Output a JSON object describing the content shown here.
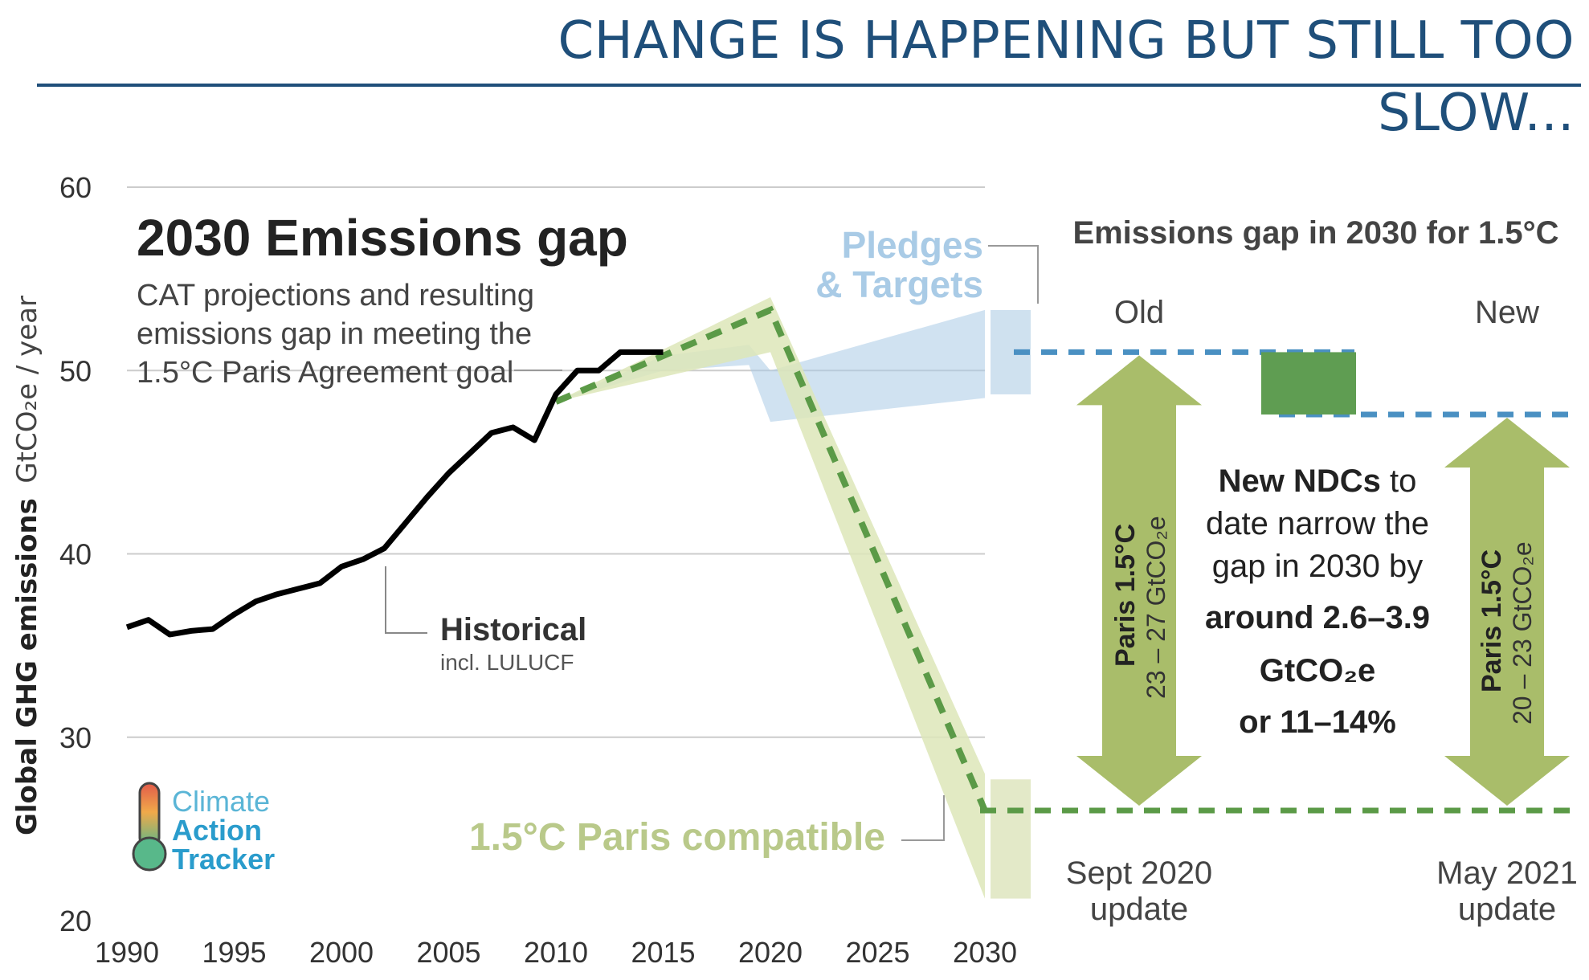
{
  "slide_title": "CHANGE IS HAPPENING BUT STILL TOO SLOW...",
  "chart_data": {
    "type": "line",
    "title": "2030 Emissions gap",
    "subtitle_lines": [
      "CAT projections and resulting",
      "emissions gap in meeting the",
      "1.5°C Paris Agreement goal"
    ],
    "ylabel": "Global GHG emissions",
    "ylabel_unit": "GtCO₂e / year",
    "xlim": [
      1990,
      2030
    ],
    "ylim": [
      20,
      60
    ],
    "x_ticks": [
      "1990",
      "1995",
      "2000",
      "2005",
      "2010",
      "2015",
      "2020",
      "2025",
      "2030"
    ],
    "y_ticks": [
      "20",
      "30",
      "40",
      "50",
      "60"
    ],
    "grid": true,
    "series": [
      {
        "name": "Historical",
        "sub_label": "incl. LULUCF",
        "color": "#000000",
        "x": [
          1990,
          1991,
          1992,
          1993,
          1994,
          1995,
          1996,
          1997,
          1998,
          1999,
          2000,
          2001,
          2002,
          2003,
          2004,
          2005,
          2006,
          2007,
          2008,
          2009,
          2010,
          2011,
          2012,
          2013,
          2014,
          2015
        ],
        "y": [
          36.0,
          36.4,
          35.6,
          35.8,
          35.9,
          36.7,
          37.4,
          37.8,
          38.1,
          38.4,
          39.3,
          39.7,
          40.3,
          41.7,
          43.1,
          44.4,
          45.5,
          46.6,
          46.9,
          46.2,
          48.7,
          50.0,
          50.0,
          51.0,
          51.0,
          51.0
        ]
      },
      {
        "name": "1.5°C Paris compatible",
        "color": "#5b9a47",
        "style": "dashed",
        "x": [
          2010,
          2020,
          2030
        ],
        "y": [
          48.3,
          53.3,
          26.0
        ],
        "band_upper": [
          48.3,
          54.0,
          28.0
        ],
        "band_lower": [
          48.3,
          51.0,
          21.2
        ],
        "band_color": "#dde6b8"
      },
      {
        "name": "Pledges & Targets",
        "color": "#a9cbe6",
        "band_x": [
          2010,
          2015,
          2019,
          2020,
          2030
        ],
        "band_upper": [
          48.3,
          50.8,
          51.4,
          50.0,
          53.3
        ],
        "band_lower": [
          48.3,
          50.0,
          50.3,
          47.2,
          48.5
        ]
      }
    ],
    "range_bars": [
      {
        "name": "pledges-2030-range",
        "color": "#cfe1ef",
        "x": 2031.2,
        "y_low": 48.7,
        "y_high": 53.3
      },
      {
        "name": "paris-2030-range",
        "color": "#e3e9c8",
        "x": 2031.2,
        "y_low": 21.2,
        "y_high": 27.7
      }
    ],
    "annotations": {
      "pledges_label": [
        "Pledges",
        "& Targets"
      ],
      "paris_label": "1.5°C Paris compatible",
      "historical_label": "Historical",
      "historical_sub": "incl. LULUCF"
    }
  },
  "gap_panel": {
    "title": "Emissions gap in 2030 for 1.5°C",
    "col_old": "Old",
    "col_new": "New",
    "old_pledge_level": 51.0,
    "new_pledge_level": 47.6,
    "paris_level": 26.0,
    "old_arrow": {
      "line1": "Paris 1.5°C",
      "line2": "23 – 27 GtCO₂e"
    },
    "new_arrow": {
      "line1": "Paris 1.5°C",
      "line2": "20 – 23 GtCO₂e"
    },
    "arrow_color": "#a9bd6a",
    "gap_box_color": "#5f9d52",
    "dot_blue": "#4a90c2",
    "dot_green": "#5b9a47",
    "mid_text": {
      "l1_bold": "New NDCs",
      "l1_rest": " to",
      "l2": "date narrow the",
      "l3": "gap in 2030 by",
      "l4": "around 2.6–3.9",
      "l5": "GtCO₂e",
      "l6": "or 11–14%"
    },
    "old_caption": [
      "Sept 2020",
      "update"
    ],
    "new_caption": [
      "May 2021",
      "update"
    ]
  },
  "logo": {
    "line1": "Climate",
    "line2": "Action",
    "line3": "Tracker"
  }
}
